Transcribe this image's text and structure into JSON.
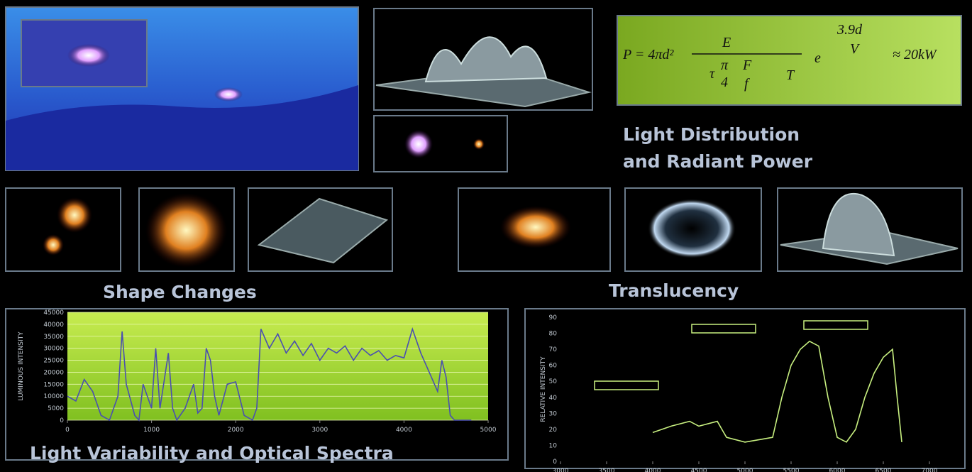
{
  "headings": {
    "radiant_1": "Light Distribution",
    "radiant_2": "and Radiant Power",
    "shape": "Shape Changes",
    "translucency": "Translucency",
    "spectra": "Light Variability and Optical Spectra"
  },
  "formula": {
    "lhs": "P = 4πd²",
    "numerator": "E",
    "tau": "τ",
    "pi": "π",
    "four": "4",
    "F": "F",
    "f": "f",
    "T": "T",
    "e": "e",
    "exp_num": "3.9d",
    "exp_den": "V",
    "result": "≈ 20kW"
  },
  "chart_data": [
    {
      "type": "line",
      "y_label": "LUMINOUS INTENSITY",
      "color": "#4a4fb0",
      "grid": true,
      "xlim": [
        0,
        5000
      ],
      "xticks": [
        0,
        1000,
        2000,
        3000,
        4000,
        5000
      ],
      "ylim": [
        0,
        45000
      ],
      "yticks": [
        0,
        5000,
        10000,
        15000,
        20000,
        25000,
        30000,
        35000,
        40000,
        45000
      ],
      "x": [
        0,
        100,
        200,
        300,
        400,
        500,
        600,
        650,
        700,
        800,
        850,
        900,
        1000,
        1050,
        1100,
        1200,
        1250,
        1300,
        1400,
        1500,
        1550,
        1600,
        1650,
        1700,
        1750,
        1800,
        1900,
        2000,
        2100,
        2200,
        2250,
        2300,
        2400,
        2500,
        2600,
        2700,
        2800,
        2900,
        3000,
        3100,
        3200,
        3300,
        3400,
        3500,
        3600,
        3700,
        3800,
        3900,
        4000,
        4100,
        4200,
        4300,
        4400,
        4450,
        4500,
        4550,
        4600,
        4700,
        4800
      ],
      "values": [
        10000,
        8000,
        17000,
        12000,
        2000,
        0,
        10000,
        37000,
        15000,
        2000,
        0,
        15000,
        5000,
        30000,
        5000,
        28000,
        5000,
        0,
        5000,
        15000,
        3000,
        5000,
        30000,
        25000,
        10000,
        2000,
        15000,
        16000,
        2000,
        0,
        5000,
        38000,
        30000,
        36000,
        28000,
        33000,
        27000,
        32000,
        25000,
        30000,
        28000,
        31000,
        25000,
        30000,
        27000,
        29000,
        25000,
        27000,
        26000,
        38000,
        28000,
        20000,
        12000,
        25000,
        18000,
        2000,
        0,
        0,
        0
      ]
    },
    {
      "type": "line",
      "y_label": "RELATIVE INTENSITY",
      "color": "#c8f080",
      "grid": false,
      "xlim": [
        3000,
        7000
      ],
      "xticks": [
        3000,
        3500,
        4000,
        4500,
        5000,
        5500,
        6000,
        6500,
        7000
      ],
      "ylim": [
        0,
        90
      ],
      "yticks": [
        0,
        10,
        20,
        30,
        40,
        50,
        60,
        70,
        80,
        90
      ],
      "x": [
        4000,
        4200,
        4400,
        4500,
        4700,
        4800,
        5000,
        5200,
        5300,
        5400,
        5500,
        5600,
        5700,
        5800,
        5900,
        6000,
        6100,
        6200,
        6300,
        6400,
        6500,
        6600,
        6650,
        6700
      ],
      "values": [
        18,
        22,
        25,
        22,
        25,
        15,
        12,
        14,
        15,
        40,
        60,
        70,
        75,
        72,
        40,
        15,
        12,
        20,
        40,
        55,
        65,
        70,
        40,
        12
      ]
    }
  ]
}
